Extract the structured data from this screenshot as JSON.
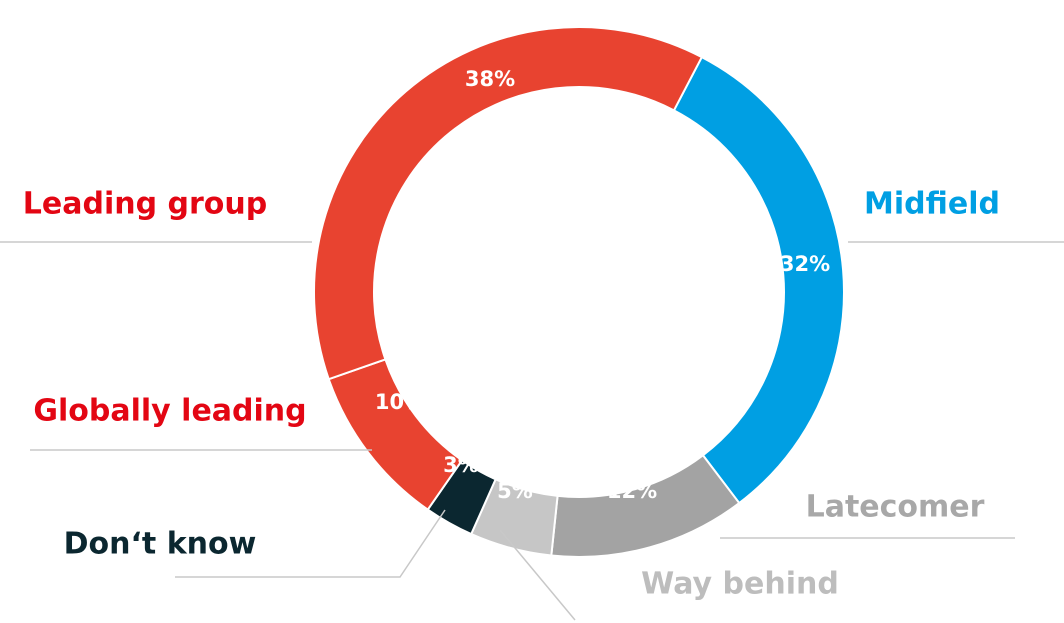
{
  "chart_data": {
    "type": "donut",
    "categories": [
      "Midfield",
      "Latecomer",
      "Way behind",
      "Don‘t know",
      "Globally leading",
      "Leading group"
    ],
    "values": [
      32,
      12,
      5,
      3,
      10,
      38
    ],
    "value_labels": [
      "32%",
      "12%",
      "5%",
      "3%",
      "10%",
      "38%"
    ],
    "colors": [
      "#009fe3",
      "#a3a3a3",
      "#c6c6c6",
      "#0b2730",
      "#e84330",
      "#e84330"
    ],
    "label_colors": [
      "#009fe3",
      "#a8a8a8",
      "#bdbdbd",
      "#0b2730",
      "#e30613",
      "#e30613"
    ]
  }
}
